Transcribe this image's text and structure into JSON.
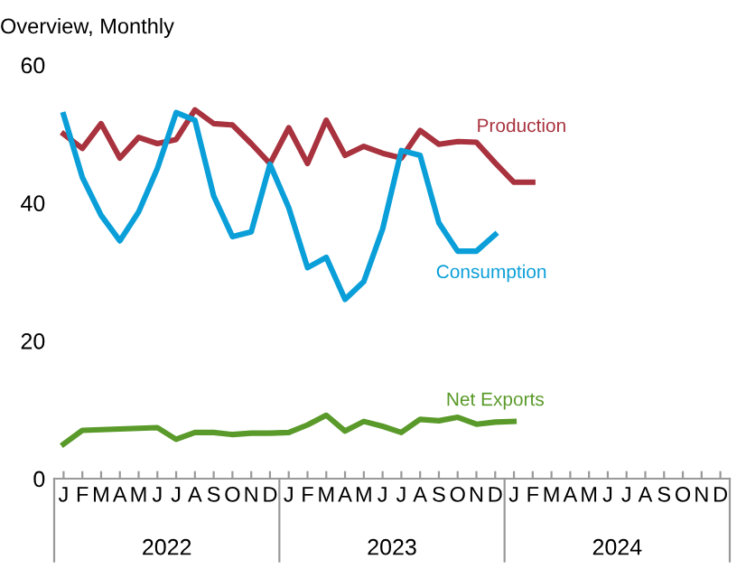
{
  "chart_data": {
    "type": "line",
    "title": "Overview, Monthly",
    "categories": [
      "J",
      "F",
      "M",
      "A",
      "M",
      "J",
      "J",
      "A",
      "S",
      "O",
      "N",
      "D",
      "J",
      "F",
      "M",
      "A",
      "M",
      "J",
      "J",
      "A",
      "S",
      "O",
      "N",
      "D",
      "J",
      "F",
      "M",
      "A",
      "M",
      "J",
      "J",
      "A",
      "S",
      "O",
      "N",
      "D"
    ],
    "annotations": [
      "2022",
      "2023",
      "2024"
    ],
    "series": [
      {
        "name": "Production",
        "color": "#a8323e",
        "values": [
          50,
          47.9,
          51.5,
          46.5,
          49.5,
          48.6,
          49.2,
          53.5,
          51.5,
          51.3,
          48.6,
          45.7,
          50.9,
          45.7,
          52,
          46.9,
          48.2,
          47.2,
          46.5,
          50.5,
          48.5,
          48.9,
          48.8,
          45.8,
          43,
          43,
          null,
          null,
          null,
          null,
          null,
          null,
          null,
          null,
          null,
          null
        ]
      },
      {
        "name": "Consumption",
        "color": "#0a9fd8",
        "values": [
          52.8,
          43.7,
          38.2,
          34.5,
          38.7,
          45,
          53.1,
          52,
          41,
          35.1,
          35.8,
          45.6,
          39.3,
          30.6,
          32.1,
          26,
          28.6,
          36.2,
          47.6,
          46.9,
          37.1,
          33,
          33,
          35.4,
          null,
          null,
          null,
          null,
          null,
          null,
          null,
          null,
          null,
          null,
          null,
          null
        ]
      },
      {
        "name": "Net Exports",
        "color": "#5a9a2a",
        "values": [
          5,
          7,
          7.1,
          7.2,
          7.3,
          7.4,
          5.7,
          6.7,
          6.7,
          6.4,
          6.6,
          6.6,
          6.7,
          7.8,
          9.2,
          6.9,
          8.3,
          7.6,
          6.7,
          8.6,
          8.4,
          8.9,
          7.9,
          8.2,
          8.3,
          null,
          null,
          null,
          null,
          null,
          null,
          null,
          null,
          null,
          null,
          null
        ]
      }
    ],
    "ylim": [
      0,
      60
    ],
    "yticks": [
      0,
      20,
      40,
      60
    ],
    "grid": false,
    "legend": false,
    "marker": "none",
    "line_style": "solid"
  }
}
